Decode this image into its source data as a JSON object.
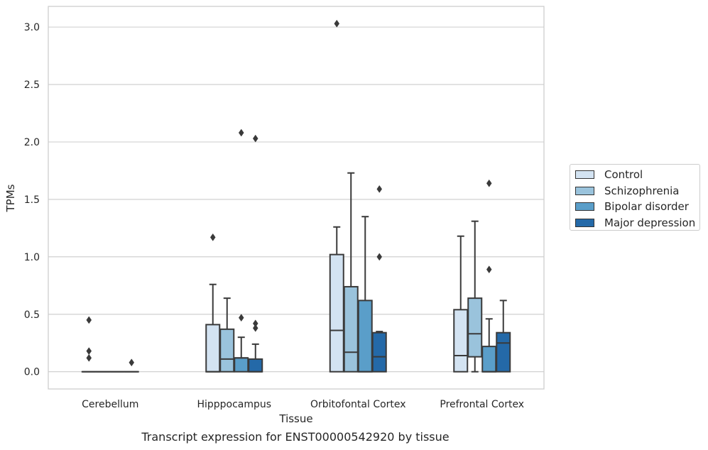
{
  "chart_data": {
    "type": "box",
    "xlabel": "Tissue",
    "ylabel": "TPMs",
    "caption": "Transcript expression for ENST00000542920 by tissue",
    "ylim": [
      -0.15,
      3.18
    ],
    "yticks": [
      0.0,
      0.5,
      1.0,
      1.5,
      2.0,
      2.5,
      3.0
    ],
    "ytick_labels": [
      "0.0",
      "0.5",
      "1.0",
      "1.5",
      "2.0",
      "2.5",
      "3.0"
    ],
    "grid": true,
    "legend_position": "right",
    "categories": [
      "Cerebellum",
      "Hipppocampus",
      "Orbitofontal Cortex",
      "Prefrontal Cortex"
    ],
    "series": [
      {
        "name": "Control",
        "color": "#d3e3f2",
        "boxes": [
          {
            "q1": 0.0,
            "median": 0.0,
            "q3": 0.0,
            "whislo": 0.0,
            "whishi": 0.0,
            "fliers": [
              0.45,
              0.18,
              0.12
            ]
          },
          {
            "q1": 0.0,
            "median": 0.0,
            "q3": 0.41,
            "whislo": 0.0,
            "whishi": 0.76,
            "fliers": [
              1.17
            ]
          },
          {
            "q1": 0.0,
            "median": 0.36,
            "q3": 1.02,
            "whislo": 0.0,
            "whishi": 1.26,
            "fliers": [
              3.03
            ]
          },
          {
            "q1": 0.0,
            "median": 0.14,
            "q3": 0.54,
            "whislo": 0.0,
            "whishi": 1.18,
            "fliers": []
          }
        ]
      },
      {
        "name": "Schizophrenia",
        "color": "#9ac3dc",
        "boxes": [
          {
            "q1": 0.0,
            "median": 0.0,
            "q3": 0.0,
            "whislo": 0.0,
            "whishi": 0.0,
            "fliers": []
          },
          {
            "q1": 0.0,
            "median": 0.11,
            "q3": 0.37,
            "whislo": 0.0,
            "whishi": 0.64,
            "fliers": []
          },
          {
            "q1": 0.0,
            "median": 0.17,
            "q3": 0.74,
            "whislo": 0.0,
            "whishi": 1.73,
            "fliers": []
          },
          {
            "q1": 0.13,
            "median": 0.33,
            "q3": 0.64,
            "whislo": 0.0,
            "whishi": 1.31,
            "fliers": []
          }
        ]
      },
      {
        "name": "Bipolar disorder",
        "color": "#5a9ec9",
        "boxes": [
          {
            "q1": 0.0,
            "median": 0.0,
            "q3": 0.0,
            "whislo": 0.0,
            "whishi": 0.0,
            "fliers": []
          },
          {
            "q1": 0.0,
            "median": 0.12,
            "q3": 0.12,
            "whislo": 0.0,
            "whishi": 0.3,
            "fliers": [
              2.08,
              0.47
            ]
          },
          {
            "q1": 0.0,
            "median": 0.0,
            "q3": 0.62,
            "whislo": 0.0,
            "whishi": 1.35,
            "fliers": []
          },
          {
            "q1": 0.0,
            "median": 0.0,
            "q3": 0.22,
            "whislo": 0.0,
            "whishi": 0.46,
            "fliers": [
              1.64,
              0.89
            ]
          }
        ]
      },
      {
        "name": "Major depression",
        "color": "#2469a8",
        "boxes": [
          {
            "q1": 0.0,
            "median": 0.0,
            "q3": 0.0,
            "whislo": 0.0,
            "whishi": 0.0,
            "fliers": [
              0.08
            ]
          },
          {
            "q1": 0.0,
            "median": 0.0,
            "q3": 0.11,
            "whislo": 0.0,
            "whishi": 0.24,
            "fliers": [
              2.03,
              0.42,
              0.38
            ]
          },
          {
            "q1": 0.0,
            "median": 0.13,
            "q3": 0.34,
            "whislo": 0.0,
            "whishi": 0.35,
            "fliers": [
              1.59,
              1.0
            ]
          },
          {
            "q1": 0.0,
            "median": 0.25,
            "q3": 0.34,
            "whislo": 0.0,
            "whishi": 0.62,
            "fliers": []
          }
        ]
      }
    ]
  }
}
